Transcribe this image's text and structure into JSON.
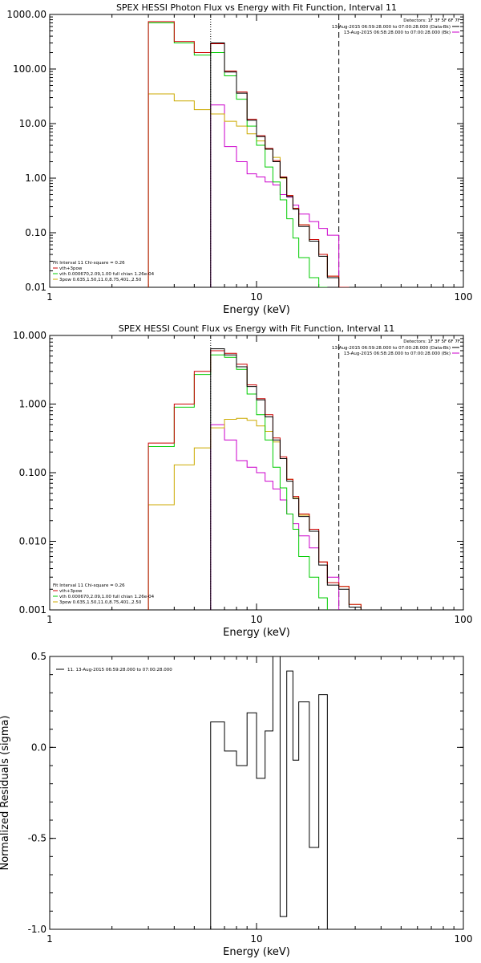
{
  "chart_data": [
    {
      "type": "line",
      "title": "SPEX HESSI Photon Flux vs Energy with Fit Function, Interval 11",
      "xlabel": "Energy (keV)",
      "ylabel": "",
      "xscale": "log",
      "yscale": "log",
      "xlim": [
        1,
        100
      ],
      "ylim": [
        0.01,
        1000
      ],
      "x_ticks": [
        "1",
        "10",
        "100"
      ],
      "y_ticks": [
        "0.01",
        "0.10",
        "1.00",
        "10.00",
        "100.00",
        "1000.00"
      ],
      "vlines_dotted": [
        6.0
      ],
      "vlines_dashed": [
        25.0
      ],
      "detectors_text": "Detectors: 1F 3F 5F 6F 7F",
      "legend_top": [
        {
          "text": "13-Aug-2015 06:59:28.000 to 07:00:28.000 (Data-Bk)",
          "color": "#000000"
        },
        {
          "text": "13-Aug-2015 06:58:28.000 to 07:00:28.000 (Bk)",
          "color": "#cc00cc"
        }
      ],
      "legend_bottom": [
        {
          "text": "Fit Interval 11    Chi-square = 0.26",
          "color": ""
        },
        {
          "text": "vth+3pow",
          "color": "#cc0000"
        },
        {
          "text": "vth 0.000670,2.09,1.00   full chian 1.26e-04",
          "color": "#00cc00"
        },
        {
          "text": "3pow 0.635,1.50,11.0,8.75,401.,2.50",
          "color": "#ccaa00"
        }
      ],
      "bin_edges": [
        3.0,
        4.0,
        5.0,
        6.0,
        7.0,
        8.0,
        9.0,
        10.0,
        11.0,
        12.0,
        13.0,
        14.0,
        15.0,
        16.0,
        18.0,
        20.0,
        22.0,
        25.0,
        28.0,
        32.0
      ],
      "series": [
        {
          "name": "vth+3pow",
          "color": "#cc0000",
          "values": [
            740,
            320,
            200,
            290,
            92,
            38,
            12,
            6.0,
            3.5,
            2.1,
            1.05,
            0.48,
            0.28,
            0.14,
            0.075,
            0.04,
            0.016,
            0.004,
            null
          ]
        },
        {
          "name": "Data-Bk",
          "color": "#000000",
          "values": [
            null,
            null,
            null,
            300,
            88,
            36,
            11.5,
            5.8,
            3.4,
            2.0,
            1.02,
            0.46,
            0.27,
            0.13,
            0.07,
            0.037,
            0.015,
            null,
            null
          ]
        },
        {
          "name": "vth",
          "color": "#00cc00",
          "values": [
            700,
            300,
            180,
            200,
            75,
            28,
            9,
            4.0,
            1.6,
            0.85,
            0.4,
            0.18,
            0.08,
            0.035,
            0.015,
            0.006,
            null,
            null,
            null
          ]
        },
        {
          "name": "3pow",
          "color": "#ccaa00",
          "values": [
            35,
            26,
            18,
            15,
            11,
            9.0,
            6.5,
            4.8,
            3.4,
            2.4,
            1.0,
            0.48,
            0.28,
            0.14,
            0.07,
            0.04,
            0.016,
            0.004,
            null
          ]
        },
        {
          "name": "Bk",
          "color": "#cc00cc",
          "values": [
            null,
            null,
            null,
            22,
            3.8,
            2.0,
            1.2,
            1.05,
            0.85,
            0.75,
            0.5,
            0.45,
            0.32,
            0.22,
            0.16,
            0.12,
            0.09,
            null,
            null
          ]
        }
      ]
    },
    {
      "type": "line",
      "title": "SPEX HESSI Count Flux vs Energy with Fit Function, Interval 11",
      "xlabel": "Energy (keV)",
      "ylabel": "",
      "xscale": "log",
      "yscale": "log",
      "xlim": [
        1,
        100
      ],
      "ylim": [
        0.001,
        10
      ],
      "x_ticks": [
        "1",
        "10",
        "100"
      ],
      "y_ticks": [
        "0.001",
        "0.010",
        "0.100",
        "1.000",
        "10.000"
      ],
      "vlines_dotted": [
        6.0
      ],
      "vlines_dashed": [
        25.0
      ],
      "detectors_text": "Detectors: 1F 3F 5F 6F 7F",
      "legend_top": [
        {
          "text": "13-Aug-2015 06:59:28.000 to 07:00:28.000 (Data-Bk)",
          "color": "#000000"
        },
        {
          "text": "13-Aug-2015 06:58:28.000 to 07:00:28.000 (Bk)",
          "color": "#cc00cc"
        }
      ],
      "legend_bottom": [
        {
          "text": "Fit Interval 11    Chi-square = 0.26",
          "color": ""
        },
        {
          "text": "vth+3pow",
          "color": "#cc0000"
        },
        {
          "text": "vth 0.000670,2.09,1.00   full chian 1.26e-04",
          "color": "#00cc00"
        },
        {
          "text": "3pow 0.635,1.50,11.0,8.75,401.,2.50",
          "color": "#ccaa00"
        }
      ],
      "bin_edges": [
        3.0,
        4.0,
        5.0,
        6.0,
        7.0,
        8.0,
        9.0,
        10.0,
        11.0,
        12.0,
        13.0,
        14.0,
        15.0,
        16.0,
        18.0,
        20.0,
        22.0,
        25.0,
        28.0,
        32.0
      ],
      "series": [
        {
          "name": "vth+3pow",
          "color": "#cc0000",
          "values": [
            0.27,
            1.0,
            3.0,
            6.0,
            5.5,
            3.8,
            1.9,
            1.2,
            0.7,
            0.32,
            0.17,
            0.08,
            0.045,
            0.025,
            0.015,
            0.005,
            0.0025,
            0.0022,
            0.0012
          ]
        },
        {
          "name": "Data-Bk",
          "color": "#000000",
          "values": [
            null,
            null,
            null,
            6.4,
            5.2,
            3.5,
            1.8,
            1.15,
            0.65,
            0.3,
            0.16,
            0.075,
            0.042,
            0.023,
            0.014,
            0.0045,
            0.0023,
            0.002,
            0.0011
          ]
        },
        {
          "name": "vth",
          "color": "#00cc00",
          "values": [
            0.24,
            0.9,
            2.7,
            5.2,
            4.8,
            3.2,
            1.4,
            0.7,
            0.3,
            0.12,
            0.06,
            0.025,
            0.015,
            0.006,
            0.003,
            0.0015,
            null,
            null,
            null
          ]
        },
        {
          "name": "3pow",
          "color": "#ccaa00",
          "values": [
            0.034,
            0.13,
            0.23,
            0.45,
            0.6,
            0.62,
            0.58,
            0.48,
            0.4,
            0.28,
            0.16,
            0.08,
            0.043,
            0.024,
            0.014,
            0.005,
            0.0025,
            0.0022,
            0.0012
          ]
        },
        {
          "name": "Bk",
          "color": "#cc00cc",
          "values": [
            null,
            null,
            null,
            0.5,
            0.3,
            0.15,
            0.12,
            0.1,
            0.075,
            0.058,
            0.04,
            0.025,
            0.018,
            0.012,
            0.008,
            0.005,
            0.003,
            null,
            null
          ]
        }
      ]
    },
    {
      "type": "line",
      "title": "",
      "xlabel": "Energy (keV)",
      "ylabel": "Normalized Residuals (sigma)",
      "xscale": "log",
      "yscale": "linear",
      "xlim": [
        1,
        100
      ],
      "ylim": [
        -1.0,
        0.5
      ],
      "x_ticks": [
        "1",
        "10",
        "100"
      ],
      "y_ticks": [
        "-1.0",
        "-0.5",
        "0.0",
        "0.5"
      ],
      "legend_top": [
        {
          "text": "11. 13-Aug-2015 06:59:28.000 to 07:00:28.000",
          "color": "#000000"
        }
      ],
      "bin_edges": [
        6.0,
        7.0,
        8.0,
        9.0,
        10.0,
        11.0,
        12.0,
        13.0,
        14.0,
        15.0,
        16.0,
        18.0,
        20.0,
        22.0,
        25.0
      ],
      "series": [
        {
          "name": "11. 13-Aug-2015 06:59:28.000 to 07:00:28.000",
          "color": "#000000",
          "values": [
            0.14,
            -0.02,
            -0.1,
            0.19,
            -0.17,
            0.09,
            0.5,
            -0.93,
            0.42,
            -0.07,
            0.25,
            -0.55,
            0.29,
            -1.0
          ]
        }
      ]
    }
  ]
}
